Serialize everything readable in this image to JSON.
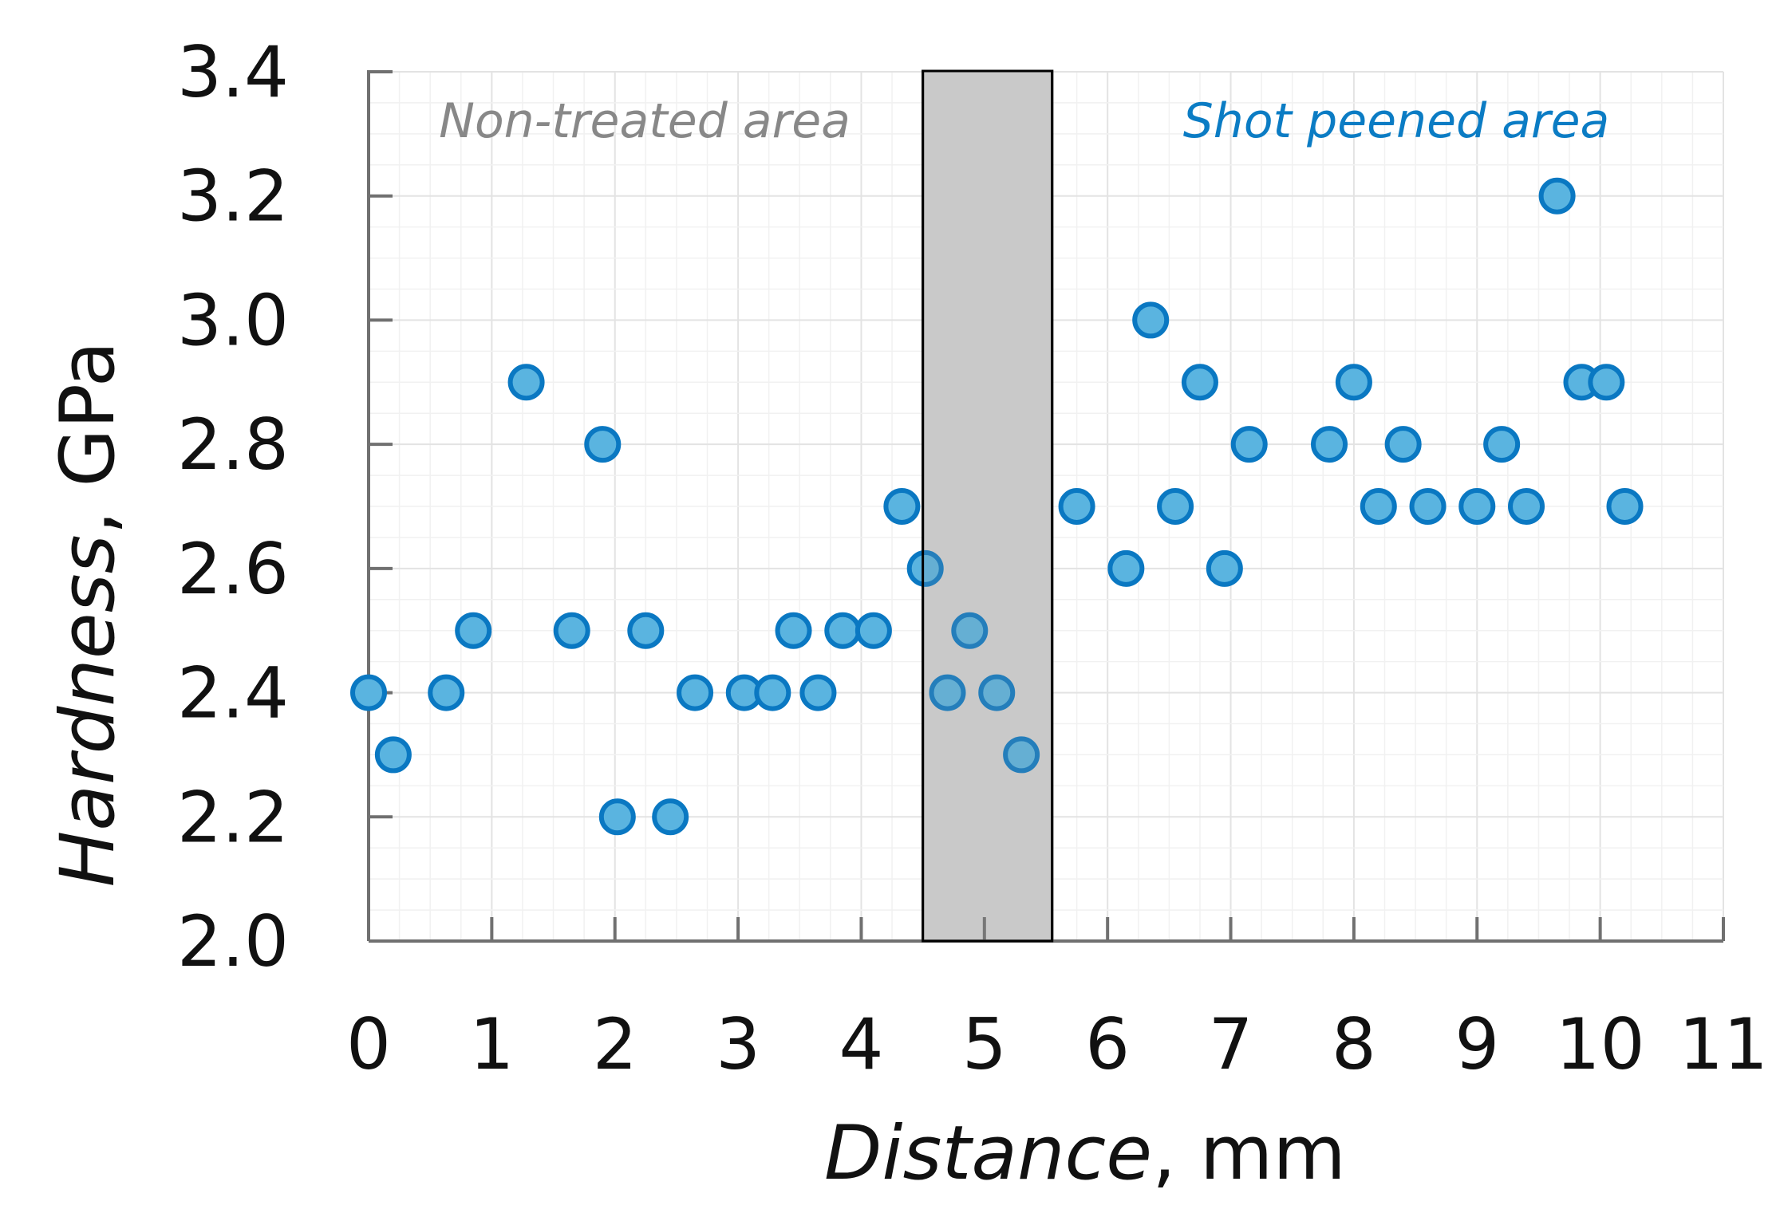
{
  "chart_data": {
    "type": "scatter",
    "title": "",
    "xlabel_italic": "Distance",
    "xlabel_rest": ", mm",
    "ylabel_italic": "Hardness",
    "ylabel_rest": ", GPa",
    "xlim": [
      0,
      11
    ],
    "ylim": [
      2.0,
      3.4
    ],
    "x_ticks": [
      0,
      1,
      2,
      3,
      4,
      5,
      6,
      7,
      8,
      9,
      10,
      11
    ],
    "x_tick_labels": [
      "0",
      "1",
      "2",
      "3",
      "4",
      "5",
      "6",
      "7",
      "8",
      "9",
      "10",
      "11"
    ],
    "y_ticks": [
      2.0,
      2.2,
      2.4,
      2.6,
      2.8,
      3.0,
      3.2,
      3.4
    ],
    "y_tick_labels": [
      "2.0",
      "2.2",
      "2.4",
      "2.6",
      "2.8",
      "3.0",
      "3.2",
      "3.4"
    ],
    "grid": true,
    "transition_zone": {
      "x_start": 4.5,
      "x_end": 5.55,
      "color": "#d4d4d4"
    },
    "annotations": [
      {
        "text": "Non-treated area",
        "color": "#888888",
        "region": "top-left"
      },
      {
        "text": "Shot peened area",
        "color": "#0b7cc4",
        "region": "top-right"
      }
    ],
    "marker_fill": "#5ab4e0",
    "marker_edge": "#0a78c2",
    "series": [
      {
        "name": "Hardness",
        "x": [
          0.0,
          0.2,
          0.63,
          0.85,
          1.28,
          1.65,
          1.9,
          2.02,
          2.25,
          2.45,
          2.65,
          3.05,
          3.28,
          3.45,
          3.65,
          3.85,
          4.1,
          4.33,
          4.52,
          4.7,
          4.88,
          5.1,
          5.3,
          5.75,
          6.15,
          6.35,
          6.55,
          6.75,
          6.95,
          7.15,
          7.8,
          8.0,
          8.2,
          8.4,
          8.6,
          9.0,
          9.2,
          9.4,
          9.65,
          9.85,
          10.05,
          10.2
        ],
        "y": [
          2.4,
          2.3,
          2.4,
          2.5,
          2.9,
          2.5,
          2.8,
          2.2,
          2.5,
          2.2,
          2.4,
          2.4,
          2.4,
          2.5,
          2.4,
          2.5,
          2.5,
          2.7,
          2.6,
          2.4,
          2.5,
          2.4,
          2.3,
          2.7,
          2.6,
          3.0,
          2.7,
          2.9,
          2.6,
          2.8,
          2.8,
          2.9,
          2.7,
          2.8,
          2.7,
          2.7,
          2.8,
          2.7,
          3.2,
          2.9,
          2.9,
          2.7
        ]
      }
    ]
  }
}
